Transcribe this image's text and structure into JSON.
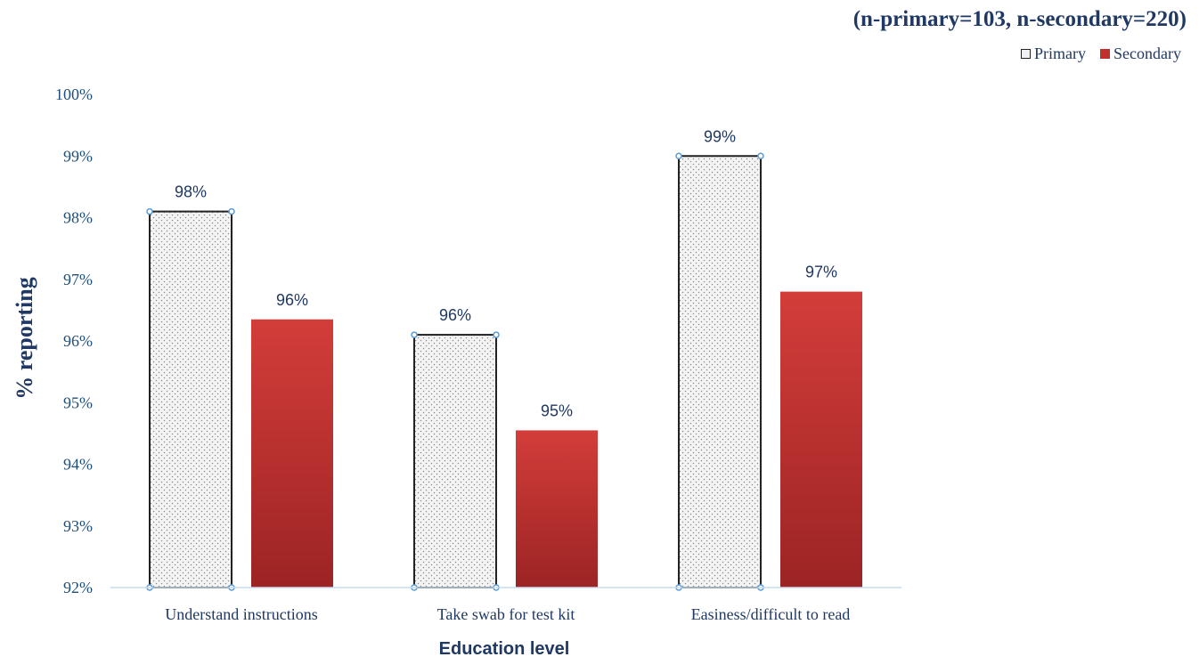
{
  "chart_data": {
    "type": "bar",
    "subtitle": "(n-primary=103, n-secondary=220)",
    "xlabel": "Education level",
    "ylabel": "% reporting",
    "categories": [
      "Understand instructions",
      "Take swab for test kit",
      "Easiness/difficult to read"
    ],
    "series": [
      {
        "name": "Primary",
        "values": [
          98.1,
          96.1,
          99.0
        ],
        "labels": [
          "98%",
          "96%",
          "99%"
        ],
        "color": "#f2f2f2"
      },
      {
        "name": "Secondary",
        "values": [
          96.35,
          94.55,
          96.8
        ],
        "labels": [
          "96%",
          "95%",
          "97%"
        ],
        "color": "#c0302e"
      }
    ],
    "ylim": [
      92,
      100
    ],
    "yticks": [
      92,
      93,
      94,
      95,
      96,
      97,
      98,
      99,
      100
    ],
    "ytick_labels": [
      "92%",
      "93%",
      "94%",
      "95%",
      "96%",
      "97%",
      "98%",
      "99%",
      "100%"
    ],
    "legend": {
      "position": "top-right",
      "entries": [
        "Primary",
        "Secondary"
      ]
    },
    "grid": false
  }
}
